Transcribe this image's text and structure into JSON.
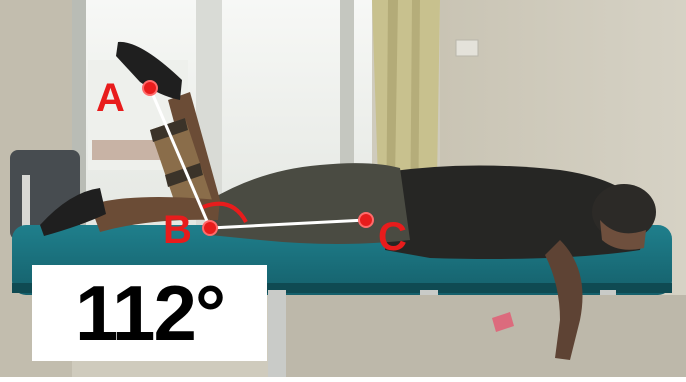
{
  "measurement": {
    "angle_readout": "112°",
    "points": {
      "a_label": "A",
      "b_label": "B",
      "c_label": "C"
    }
  },
  "colors": {
    "marker": "#e81c1c",
    "segment": "#ffffff",
    "readout_bg": "#ffffff",
    "readout_text": "#000000"
  }
}
